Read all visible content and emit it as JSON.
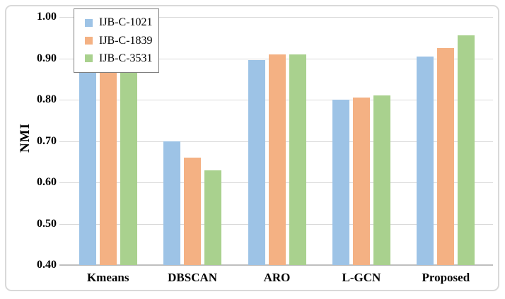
{
  "chart_data": {
    "type": "bar",
    "title": "",
    "xlabel": "",
    "ylabel": "NMI",
    "categories": [
      "Kmeans",
      "DBSCAN",
      "ARO",
      "L-GCN",
      "Proposed"
    ],
    "series": [
      {
        "name": "IJB-C-1021",
        "color": "#9DC3E6",
        "values": [
          0.88,
          0.7,
          0.895,
          0.8,
          0.905
        ]
      },
      {
        "name": "IJB-C-1839",
        "color": "#F4B183",
        "values": [
          0.88,
          0.66,
          0.91,
          0.805,
          0.925
        ]
      },
      {
        "name": "IJB-C-3531",
        "color": "#A9D18E",
        "values": [
          0.88,
          0.63,
          0.91,
          0.81,
          0.955
        ]
      }
    ],
    "ylim": [
      0.4,
      1.0
    ],
    "ytick_labels": [
      "1.00",
      "0.90",
      "0.80",
      "0.70",
      "0.60",
      "0.50",
      "0.40"
    ],
    "grid": true,
    "legend_position": "top-left",
    "occlusion_note": "Tops of the Kmeans bars are hidden behind the legend box; their values are estimated (>= 0.87)."
  },
  "colors": {
    "bar_blue": "#9DC3E6",
    "bar_orange": "#F4B183",
    "bar_green": "#A9D18E",
    "gridline": "#D9D9D9",
    "axis_line": "#BFBFBF",
    "legend_border": "#7F7F7F",
    "frame_border": "#D9D9D9",
    "text": "#000000",
    "background": "#FFFFFF"
  }
}
